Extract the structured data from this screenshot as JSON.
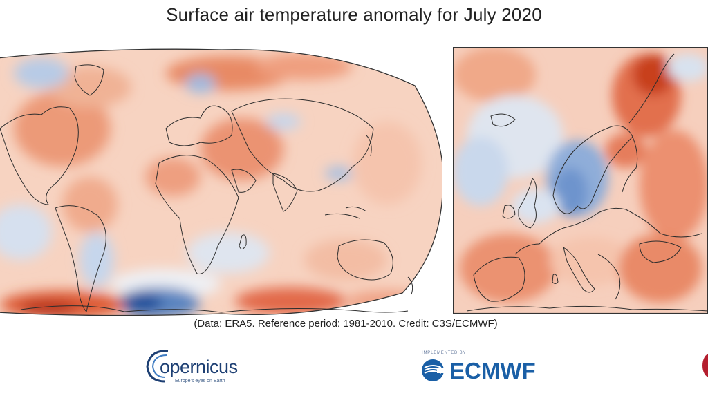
{
  "title": "Surface air temperature anomaly for July 2020",
  "caption": "(Data: ERA5.  Reference period: 1981-2010.  Credit: C3S/ECMWF)",
  "maps": {
    "world": {
      "projection": "Robinson",
      "region": "Global"
    },
    "europe": {
      "region": "Europe"
    }
  },
  "color_scale": {
    "warm": "#e3683f",
    "warm_strong": "#b2301e",
    "neutral": "#fbe8de",
    "cool": "#a9c2e2",
    "cool_strong": "#2c5aa0"
  },
  "logos": {
    "copernicus": {
      "name": "copernicus-logo",
      "word": "opernicus",
      "tagline": "Europe's eyes on Earth"
    },
    "ecmwf": {
      "name": "ecmwf-logo",
      "word": "ECMWF",
      "top_text": "IMPLEMENTED BY"
    }
  }
}
